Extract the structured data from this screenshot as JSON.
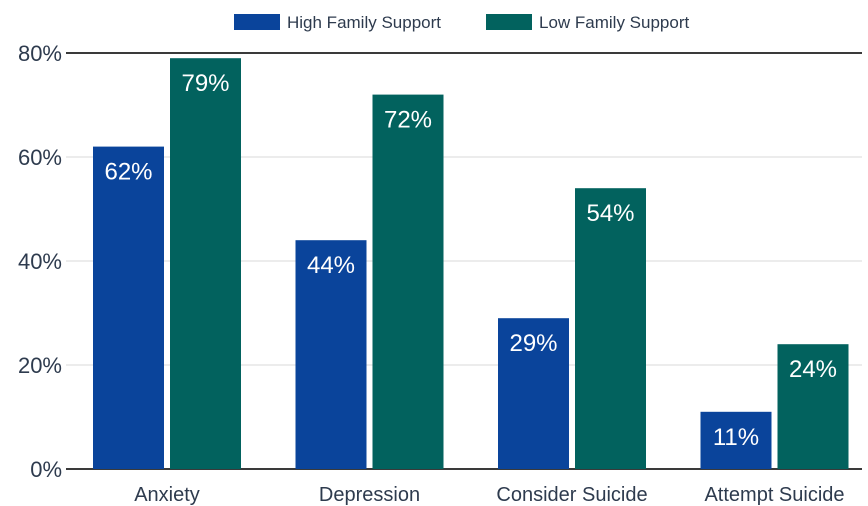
{
  "chart_data": {
    "type": "bar",
    "categories": [
      "Anxiety",
      "Depression",
      "Consider Suicide",
      "Attempt Suicide"
    ],
    "series": [
      {
        "name": "High Family Support",
        "values": [
          62,
          44,
          29,
          11
        ],
        "labels": [
          "62%",
          "44%",
          "29%",
          "11%"
        ],
        "color": "#0a449b"
      },
      {
        "name": "Low Family Support",
        "values": [
          79,
          72,
          54,
          24
        ],
        "labels": [
          "79%",
          "72%",
          "54%",
          "24%"
        ],
        "color": "#02625e"
      }
    ],
    "ylim": [
      0,
      80
    ],
    "yticks": [
      0,
      20,
      40,
      60,
      80
    ],
    "ytick_labels": [
      "0%",
      "20%",
      "40%",
      "60%",
      "80%"
    ],
    "grid": true,
    "legend": "top-center"
  }
}
